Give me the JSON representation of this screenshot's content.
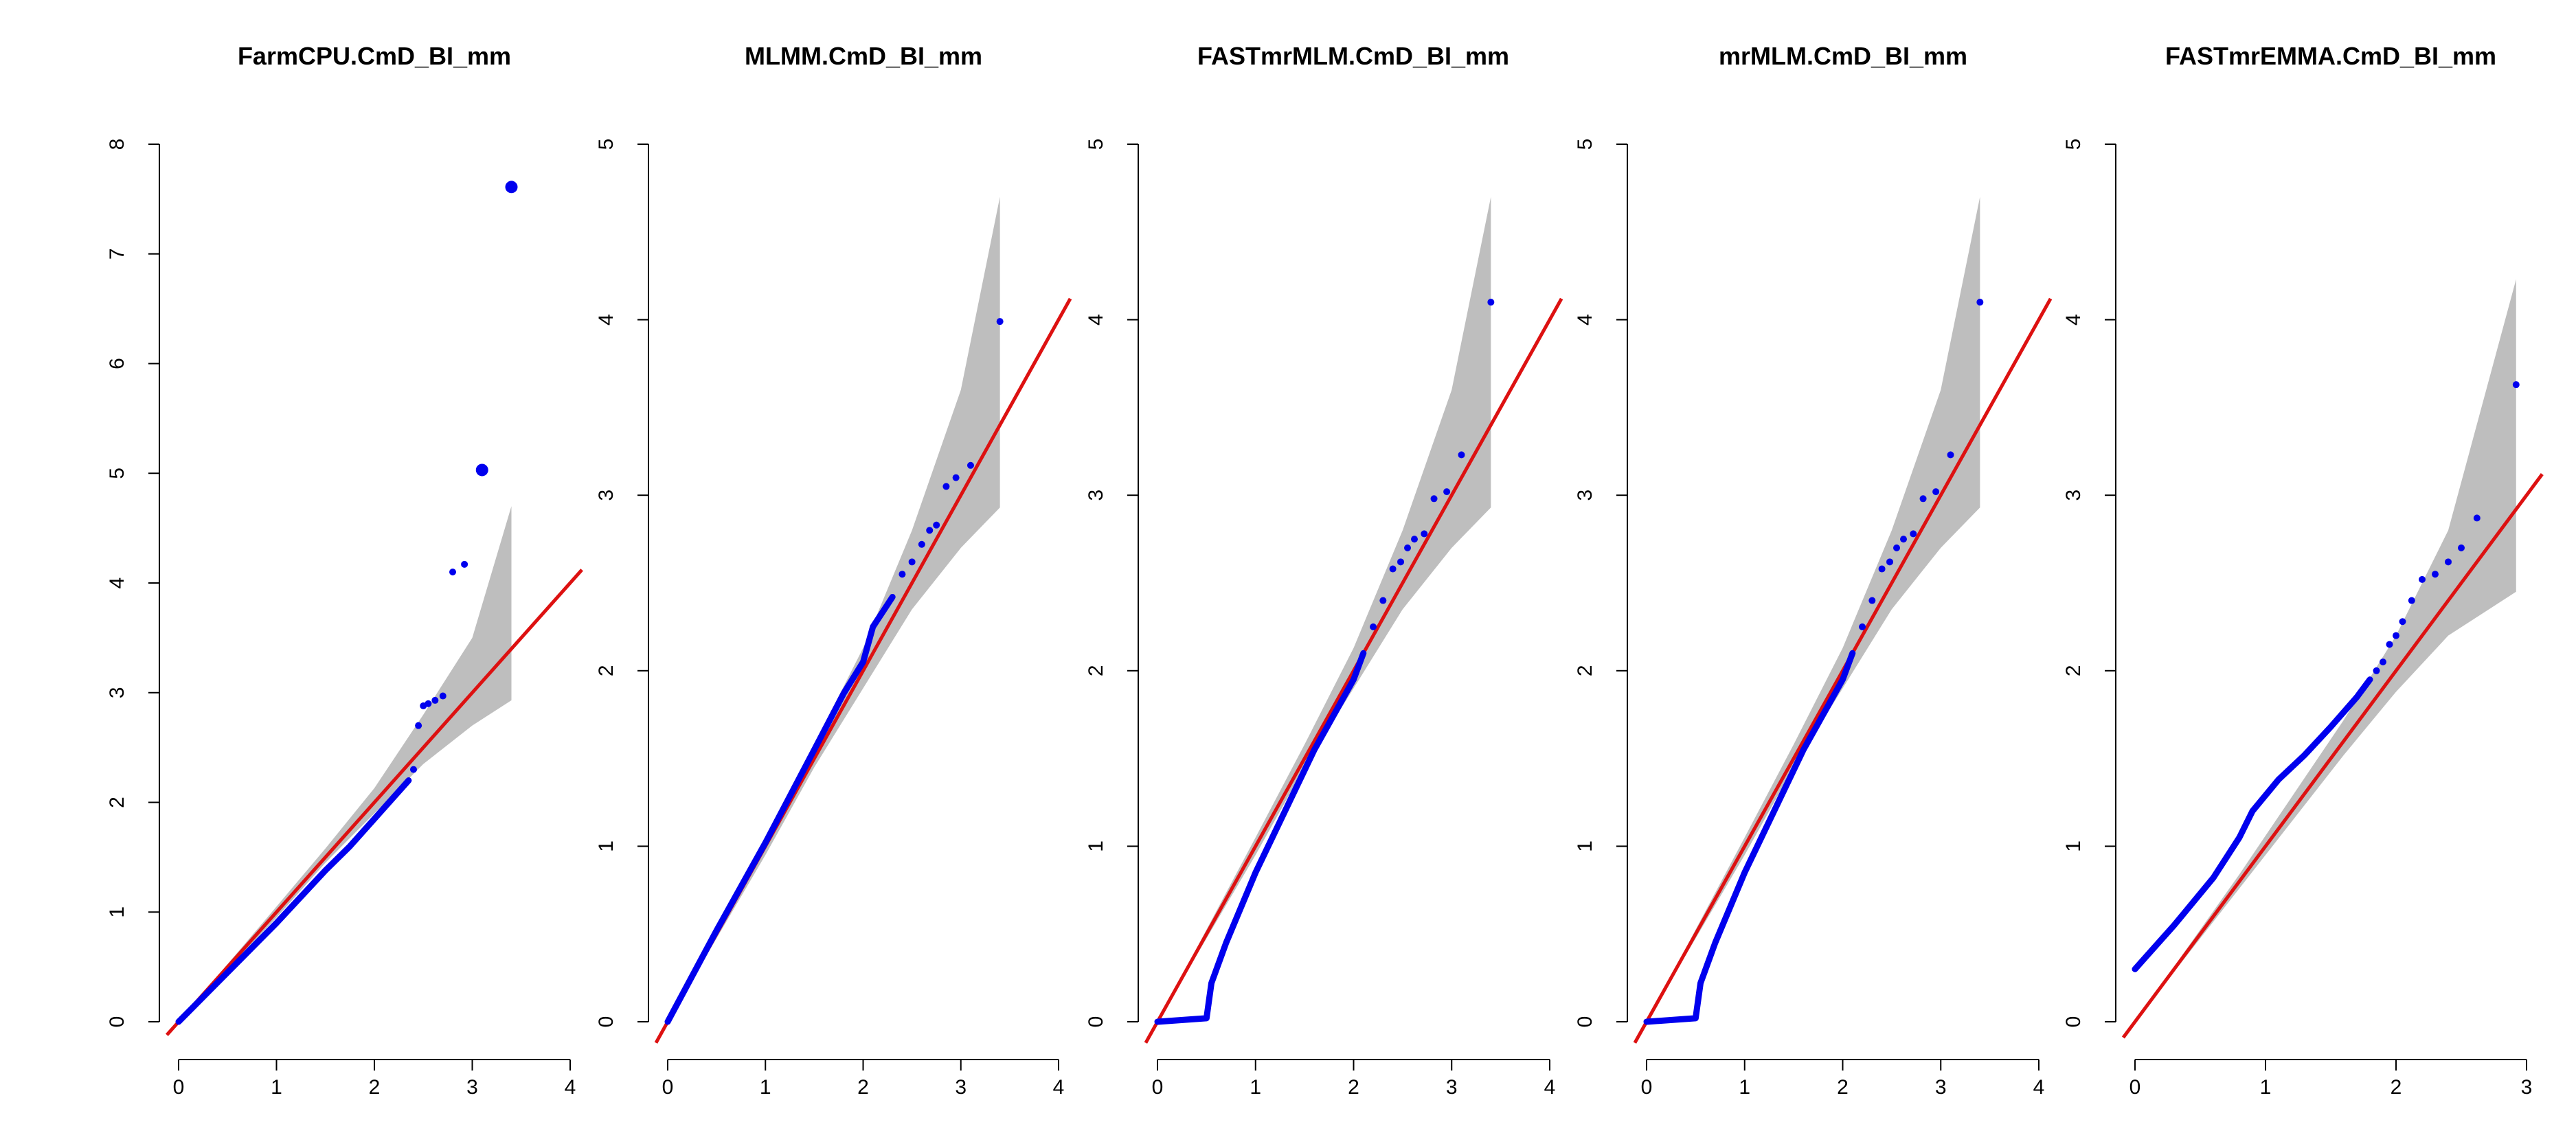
{
  "colors": {
    "points": "#0000ee",
    "reference_line": "#dd1111",
    "confidence_band": "#bebebe",
    "axis": "#000000"
  },
  "chart_data": [
    {
      "type": "scatter",
      "title": "FarmCPU.CmD_BI_mm",
      "xlabel": "",
      "ylabel": "",
      "xlim": [
        0,
        4
      ],
      "ylim": [
        0,
        8
      ],
      "x_ticks": [
        0,
        1,
        2,
        3,
        4
      ],
      "y_ticks": [
        0,
        1,
        2,
        3,
        4,
        5,
        6,
        7,
        8
      ],
      "x_tick_labels": [
        "0",
        "1",
        "2",
        "3",
        "4"
      ],
      "y_tick_labels": [
        "0",
        "1",
        "2",
        "3",
        "4",
        "5",
        "6",
        "7",
        "8"
      ],
      "reference_line": {
        "slope": 1,
        "intercept": 0
      },
      "confidence_band": {
        "x": [
          0,
          1,
          1.5,
          2,
          2.5,
          3,
          3.4
        ],
        "lower": [
          0,
          0.95,
          1.45,
          1.9,
          2.35,
          2.7,
          2.93
        ],
        "upper": [
          0,
          1.05,
          1.58,
          2.13,
          2.8,
          3.5,
          4.7
        ]
      },
      "curve": {
        "x": [
          0,
          0.5,
          1,
          1.5,
          1.75,
          2.0,
          2.2,
          2.35
        ],
        "y": [
          0,
          0.45,
          0.9,
          1.38,
          1.6,
          1.85,
          2.05,
          2.2
        ]
      },
      "points": [
        {
          "x": 2.4,
          "y": 2.3
        },
        {
          "x": 2.45,
          "y": 2.7
        },
        {
          "x": 2.5,
          "y": 2.88
        },
        {
          "x": 2.55,
          "y": 2.9
        },
        {
          "x": 2.62,
          "y": 2.93
        },
        {
          "x": 2.7,
          "y": 2.97
        },
        {
          "x": 2.8,
          "y": 4.1
        },
        {
          "x": 2.92,
          "y": 4.17
        }
      ],
      "big_points": [
        {
          "x": 3.1,
          "y": 5.03
        },
        {
          "x": 3.4,
          "y": 7.61
        }
      ]
    },
    {
      "type": "scatter",
      "title": "MLMM.CmD_BI_mm",
      "xlabel": "",
      "ylabel": "",
      "xlim": [
        0,
        4
      ],
      "ylim": [
        0,
        5
      ],
      "x_ticks": [
        0,
        1,
        2,
        3,
        4
      ],
      "y_ticks": [
        0,
        1,
        2,
        3,
        4,
        5
      ],
      "x_tick_labels": [
        "0",
        "1",
        "2",
        "3",
        "4"
      ],
      "y_tick_labels": [
        "0",
        "1",
        "2",
        "3",
        "4",
        "5"
      ],
      "reference_line": {
        "slope": 1,
        "intercept": 0
      },
      "confidence_band": {
        "x": [
          0,
          1,
          1.5,
          2,
          2.5,
          3,
          3.4
        ],
        "lower": [
          0,
          0.95,
          1.45,
          1.9,
          2.35,
          2.7,
          2.93
        ],
        "upper": [
          0,
          1.05,
          1.58,
          2.13,
          2.8,
          3.6,
          4.7
        ]
      },
      "curve": {
        "x": [
          0,
          0.5,
          1,
          1.5,
          1.8,
          2.0,
          2.1,
          2.3
        ],
        "y": [
          0,
          0.52,
          1.02,
          1.55,
          1.87,
          2.05,
          2.25,
          2.42
        ]
      },
      "points": [
        {
          "x": 2.4,
          "y": 2.55
        },
        {
          "x": 2.5,
          "y": 2.62
        },
        {
          "x": 2.6,
          "y": 2.72
        },
        {
          "x": 2.68,
          "y": 2.8
        },
        {
          "x": 2.75,
          "y": 2.83
        },
        {
          "x": 2.85,
          "y": 3.05
        },
        {
          "x": 2.95,
          "y": 3.1
        },
        {
          "x": 3.1,
          "y": 3.17
        },
        {
          "x": 3.4,
          "y": 3.99
        }
      ],
      "big_points": []
    },
    {
      "type": "scatter",
      "title": "FASTmrMLM.CmD_BI_mm",
      "xlabel": "",
      "ylabel": "",
      "xlim": [
        0,
        4
      ],
      "ylim": [
        0,
        5
      ],
      "x_ticks": [
        0,
        1,
        2,
        3,
        4
      ],
      "y_ticks": [
        0,
        1,
        2,
        3,
        4,
        5
      ],
      "x_tick_labels": [
        "0",
        "1",
        "2",
        "3",
        "4"
      ],
      "y_tick_labels": [
        "0",
        "1",
        "2",
        "3",
        "4",
        "5"
      ],
      "reference_line": {
        "slope": 1,
        "intercept": 0
      },
      "confidence_band": {
        "x": [
          0,
          1,
          1.5,
          2,
          2.5,
          3,
          3.4
        ],
        "lower": [
          0,
          0.95,
          1.45,
          1.9,
          2.35,
          2.7,
          2.93
        ],
        "upper": [
          0,
          1.05,
          1.58,
          2.13,
          2.8,
          3.6,
          4.7
        ]
      },
      "curve": {
        "x": [
          0,
          0.5,
          0.55,
          0.7,
          1.0,
          1.3,
          1.6,
          1.85,
          2.0,
          2.1
        ],
        "y": [
          0,
          0.02,
          0.22,
          0.45,
          0.85,
          1.2,
          1.55,
          1.8,
          1.95,
          2.1
        ]
      },
      "points": [
        {
          "x": 2.2,
          "y": 2.25
        },
        {
          "x": 2.3,
          "y": 2.4
        },
        {
          "x": 2.4,
          "y": 2.58
        },
        {
          "x": 2.48,
          "y": 2.62
        },
        {
          "x": 2.55,
          "y": 2.7
        },
        {
          "x": 2.62,
          "y": 2.75
        },
        {
          "x": 2.72,
          "y": 2.78
        },
        {
          "x": 2.82,
          "y": 2.98
        },
        {
          "x": 2.95,
          "y": 3.02
        },
        {
          "x": 3.1,
          "y": 3.23
        },
        {
          "x": 3.4,
          "y": 4.1
        }
      ],
      "big_points": []
    },
    {
      "type": "scatter",
      "title": "mrMLM.CmD_BI_mm",
      "xlabel": "",
      "ylabel": "",
      "xlim": [
        0,
        4
      ],
      "ylim": [
        0,
        5
      ],
      "x_ticks": [
        0,
        1,
        2,
        3,
        4
      ],
      "y_ticks": [
        0,
        1,
        2,
        3,
        4,
        5
      ],
      "x_tick_labels": [
        "0",
        "1",
        "2",
        "3",
        "4"
      ],
      "y_tick_labels": [
        "0",
        "1",
        "2",
        "3",
        "4",
        "5"
      ],
      "reference_line": {
        "slope": 1,
        "intercept": 0
      },
      "confidence_band": {
        "x": [
          0,
          1,
          1.5,
          2,
          2.5,
          3,
          3.4
        ],
        "lower": [
          0,
          0.95,
          1.45,
          1.9,
          2.35,
          2.7,
          2.93
        ],
        "upper": [
          0,
          1.05,
          1.58,
          2.13,
          2.8,
          3.6,
          4.7
        ]
      },
      "curve": {
        "x": [
          0,
          0.5,
          0.55,
          0.7,
          1.0,
          1.3,
          1.6,
          1.85,
          2.0,
          2.1
        ],
        "y": [
          0,
          0.02,
          0.22,
          0.45,
          0.85,
          1.2,
          1.55,
          1.8,
          1.95,
          2.1
        ]
      },
      "points": [
        {
          "x": 2.2,
          "y": 2.25
        },
        {
          "x": 2.3,
          "y": 2.4
        },
        {
          "x": 2.4,
          "y": 2.58
        },
        {
          "x": 2.48,
          "y": 2.62
        },
        {
          "x": 2.55,
          "y": 2.7
        },
        {
          "x": 2.62,
          "y": 2.75
        },
        {
          "x": 2.72,
          "y": 2.78
        },
        {
          "x": 2.82,
          "y": 2.98
        },
        {
          "x": 2.95,
          "y": 3.02
        },
        {
          "x": 3.1,
          "y": 3.23
        },
        {
          "x": 3.4,
          "y": 4.1
        }
      ],
      "big_points": []
    },
    {
      "type": "scatter",
      "title": "FASTmrEMMA.CmD_BI_mm",
      "xlabel": "",
      "ylabel": "",
      "xlim": [
        0,
        3
      ],
      "ylim": [
        0,
        5
      ],
      "x_ticks": [
        0,
        1,
        2,
        3
      ],
      "y_ticks": [
        0,
        1,
        2,
        3,
        4,
        5
      ],
      "x_tick_labels": [
        "0",
        "1",
        "2",
        "3"
      ],
      "y_tick_labels": [
        "0",
        "1",
        "2",
        "3",
        "4",
        "5"
      ],
      "reference_line": {
        "slope": 1,
        "intercept": 0
      },
      "confidence_band": {
        "x": [
          0,
          0.8,
          1.2,
          1.6,
          2.0,
          2.4,
          2.92
        ],
        "lower": [
          0,
          0.76,
          1.14,
          1.52,
          1.88,
          2.2,
          2.45
        ],
        "upper": [
          0,
          0.84,
          1.28,
          1.72,
          2.2,
          2.8,
          4.23
        ]
      },
      "curve": {
        "x": [
          0,
          0.3,
          0.6,
          0.8,
          0.9,
          1.1,
          1.3,
          1.5,
          1.7,
          1.8
        ],
        "y": [
          0.3,
          0.55,
          0.82,
          1.05,
          1.2,
          1.38,
          1.52,
          1.68,
          1.85,
          1.95
        ]
      },
      "points": [
        {
          "x": 1.85,
          "y": 2.0
        },
        {
          "x": 1.9,
          "y": 2.05
        },
        {
          "x": 1.95,
          "y": 2.15
        },
        {
          "x": 2.0,
          "y": 2.2
        },
        {
          "x": 2.05,
          "y": 2.28
        },
        {
          "x": 2.12,
          "y": 2.4
        },
        {
          "x": 2.2,
          "y": 2.52
        },
        {
          "x": 2.3,
          "y": 2.55
        },
        {
          "x": 2.4,
          "y": 2.62
        },
        {
          "x": 2.5,
          "y": 2.7
        },
        {
          "x": 2.62,
          "y": 2.87
        },
        {
          "x": 2.92,
          "y": 3.63
        }
      ],
      "big_points": []
    }
  ]
}
